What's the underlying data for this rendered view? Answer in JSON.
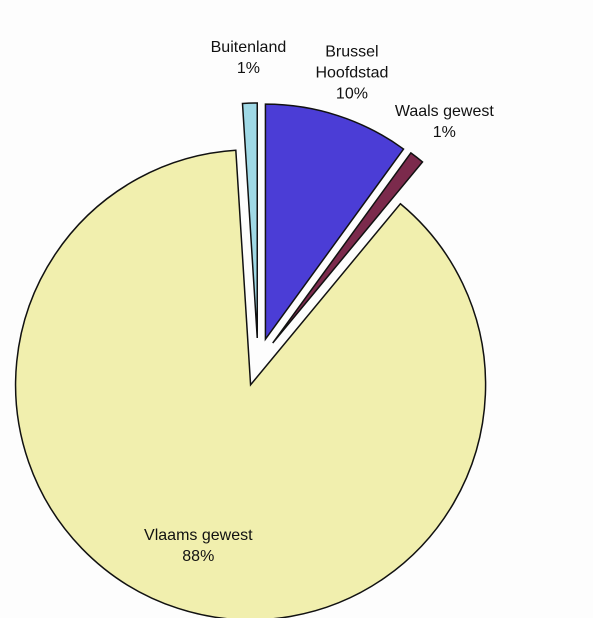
{
  "chart_data": {
    "type": "pie",
    "categories": [
      "Brussel Hoofdstad",
      "Waals gewest",
      "Vlaams gewest",
      "Buitenland"
    ],
    "values": [
      10,
      1,
      88,
      1
    ],
    "value_labels": [
      "10%",
      "1%",
      "88%",
      "1%"
    ],
    "colors": [
      "#4b3dd6",
      "#7b2a4c",
      "#f1efae",
      "#9fd9e6"
    ]
  }
}
